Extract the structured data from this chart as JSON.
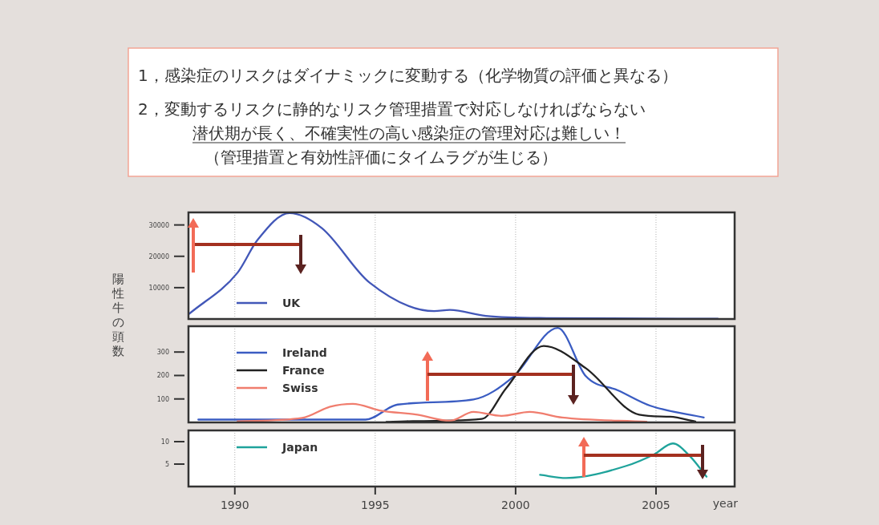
{
  "chart_data": [
    {
      "type": "other",
      "annotations": [
        "1，感染症のリスクはダイナミックに変動する（化学物質の評価と異なる）",
        "2，変動するリスクに静的なリスク管理措置で対応しなければならない",
        "潜伏期が長く、不確実性の高い感染症の管理対応は難しい！",
        "（管理措置と有効性評価にタイムラグが生じる）"
      ]
    },
    {
      "type": "line",
      "xlim": [
        1988.35,
        2007.8
      ],
      "xticks": [
        1990,
        1995,
        2000,
        2005
      ],
      "ylim": [
        0,
        34000
      ],
      "yticks": [
        10000,
        20000,
        30000
      ],
      "grid": "x",
      "legend": "bottom left",
      "tick_labels": "y",
      "series": [
        {
          "name": "UK",
          "color": "#4257b8",
          "x": [
            1988.37,
            1990.1,
            1990.8,
            1991.95,
            1993.1,
            1994.8,
            1997.1,
            1997.66,
            1998.94,
            2001.1,
            2007.2
          ],
          "values": [
            1600,
            14800,
            25100,
            33800,
            29000,
            11600,
            2500,
            2900,
            1000,
            300,
            100
          ]
        }
      ]
    },
    {
      "type": "line",
      "xlim": [
        1988.35,
        2007.8
      ],
      "xticks": [
        1990,
        1995,
        2000,
        2005
      ],
      "ylim": [
        0,
        410
      ],
      "yticks": [
        100,
        200,
        300
      ],
      "grid": "x",
      "legend": "top left",
      "tick_labels": "y",
      "ylabel": "陽性牛の頭数",
      "series": [
        {
          "name": "Ireland",
          "color": "#3a5cc2",
          "x": [
            1988.7,
            1994.66,
            1995.8,
            1998.5,
            1999.94,
            2001.5,
            2002.5,
            2003.66,
            2004.8,
            2006.7
          ],
          "values": [
            12,
            12,
            76,
            98,
            197,
            403,
            197,
            136,
            71,
            21
          ]
        },
        {
          "name": "France",
          "color": "#222222",
          "x": [
            1995.4,
            1996.1,
            1998.8,
            1999.66,
            2001.0,
            2002.5,
            2004.4,
            2005.5,
            2006.4
          ],
          "values": [
            2,
            5,
            15,
            145,
            326,
            231,
            33,
            24,
            4
          ]
        },
        {
          "name": "Swiss",
          "color": "#f07d6e",
          "x": [
            1990.1,
            1992.4,
            1993.4,
            1994.2,
            1995.2,
            1996.5,
            1997.66,
            1998.5,
            1999.5,
            2000.5,
            2001.66,
            2004.66
          ],
          "values": [
            5,
            19,
            67,
            79,
            50,
            33,
            7,
            45,
            28,
            45,
            21,
            3
          ]
        }
      ]
    },
    {
      "type": "line",
      "xlim": [
        1988.35,
        2007.8
      ],
      "xticks": [
        1990,
        1995,
        2000,
        2005
      ],
      "ylim": [
        0,
        12.5
      ],
      "yticks": [
        5,
        10
      ],
      "grid": "x",
      "legend": "top left",
      "xlabel": "year",
      "series": [
        {
          "name": "Japan",
          "color": "#1fa39b",
          "x": [
            2000.87,
            2001.8,
            2003.94,
            2004.94,
            2005.6,
            2006.2,
            2006.8
          ],
          "values": [
            2.6,
            1.9,
            4.6,
            7.2,
            9.6,
            6.8,
            2.2
          ]
        }
      ]
    }
  ]
}
